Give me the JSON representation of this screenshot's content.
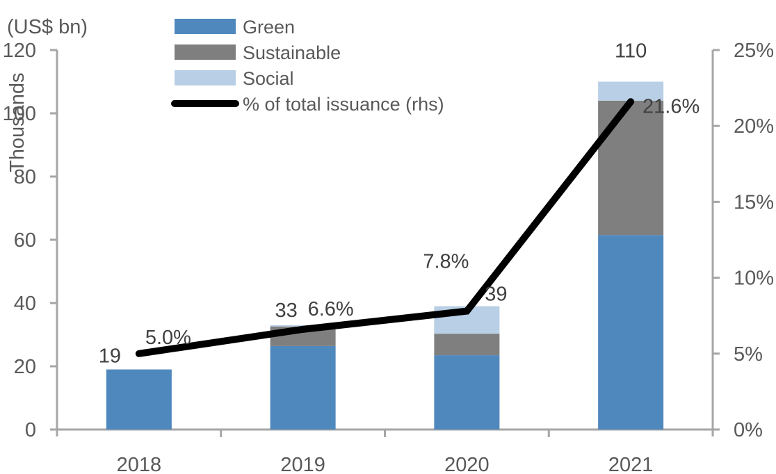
{
  "chart_data": {
    "type": "bar",
    "subtype": "stacked-bar-with-line",
    "title": "",
    "unit_label": "(US$ bn)",
    "ylabel": "Thousands",
    "xlabel": "",
    "categories": [
      "2018",
      "2019",
      "2020",
      "2021"
    ],
    "series": [
      {
        "name": "Green",
        "color": "#4f88bd",
        "values": [
          19.0,
          26.4,
          23.5,
          61.5
        ]
      },
      {
        "name": "Sustainable",
        "color": "#7f7f7f",
        "values": [
          0.0,
          6.2,
          6.8,
          42.5
        ]
      },
      {
        "name": "Social",
        "color": "#b8cfe6",
        "values": [
          0.0,
          0.4,
          8.7,
          6.0
        ]
      }
    ],
    "line_series": {
      "name": "% of total issuance (rhs)",
      "color": "#000000",
      "axis": "right",
      "values": [
        5.0,
        6.6,
        7.8,
        21.6
      ],
      "labels": [
        "5.0%",
        "6.6%",
        "7.8%",
        "21.6%"
      ]
    },
    "total_labels": [
      "19",
      "33",
      "39",
      "110"
    ],
    "y_left": {
      "ylim": [
        0,
        120
      ],
      "ticks": [
        0,
        20,
        40,
        60,
        80,
        100,
        120
      ],
      "tick_labels": [
        "0",
        "20",
        "40",
        "60",
        "80",
        "100",
        "120"
      ]
    },
    "y_right": {
      "ylim": [
        0,
        25
      ],
      "ticks": [
        0,
        5,
        10,
        15,
        20,
        25
      ],
      "tick_labels": [
        "0%",
        "5%",
        "10%",
        "15%",
        "20%",
        "25%"
      ]
    },
    "legend": {
      "placement": "top-center",
      "entries": [
        "Green",
        "Sustainable",
        "Social",
        "% of total issuance (rhs)"
      ]
    },
    "grid": false
  }
}
